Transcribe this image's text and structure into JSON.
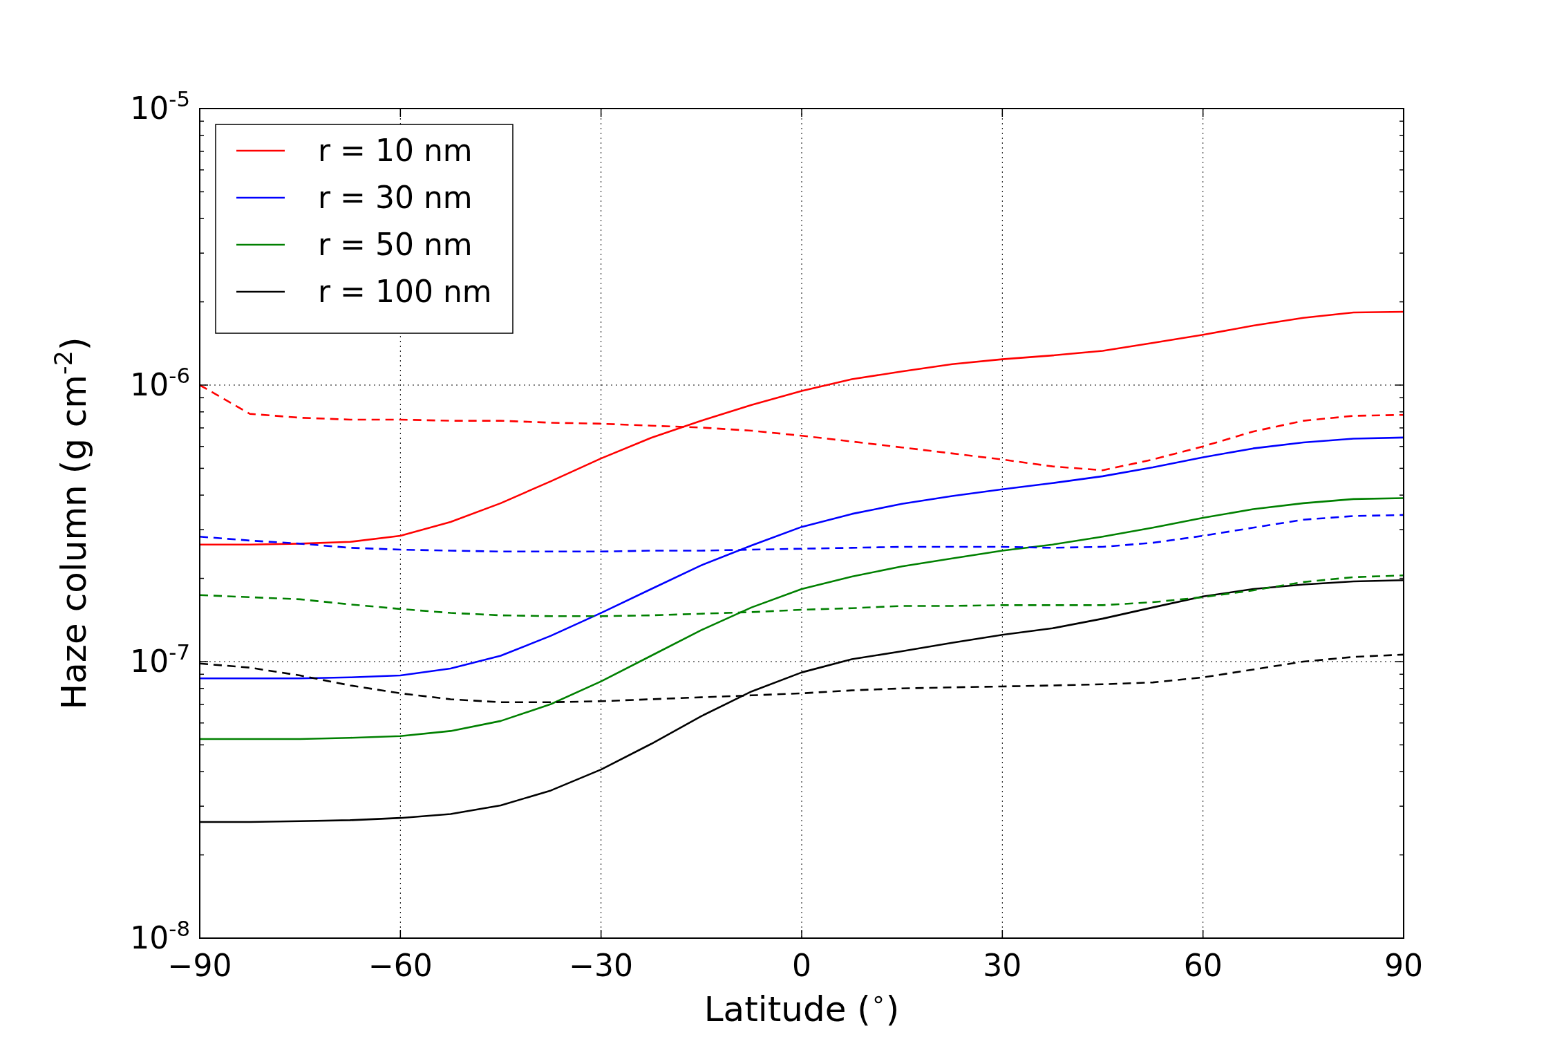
{
  "chart_data": {
    "type": "line",
    "xlabel": "Latitude ($^{∘}$)",
    "ylabel": "Haze column (g cm$^{-2}$)",
    "log": "y",
    "grid": true,
    "legend": "top left",
    "xlim": [
      -90,
      90
    ],
    "xticks": [
      {
        "value": -90,
        "label": "−90"
      },
      {
        "value": -60,
        "label": "−60"
      },
      {
        "value": -30,
        "label": "−30"
      },
      0,
      30,
      60,
      90
    ],
    "ylim": [
      1e-08,
      1e-05
    ],
    "yticks": [
      {
        "value": 1e-08,
        "label": "10$^{-8}$"
      },
      {
        "value": 2e-08,
        "label": null
      },
      {
        "value": 3e-08,
        "label": null
      },
      {
        "value": 4e-08,
        "label": null
      },
      {
        "value": 5e-08,
        "label": null
      },
      {
        "value": 6e-08,
        "label": null
      },
      {
        "value": 7e-08,
        "label": null
      },
      {
        "value": 8e-08,
        "label": null
      },
      {
        "value": 9e-08,
        "label": null
      },
      {
        "value": 1e-07,
        "label": "10$^{-7}$"
      },
      {
        "value": 2e-07,
        "label": null
      },
      {
        "value": 3e-07,
        "label": null
      },
      {
        "value": 4e-07,
        "label": null
      },
      {
        "value": 5e-07,
        "label": null
      },
      {
        "value": 6e-07,
        "label": null
      },
      {
        "value": 7e-07,
        "label": null
      },
      {
        "value": 8e-07,
        "label": null
      },
      {
        "value": 9e-07,
        "label": null
      },
      {
        "value": 1e-06,
        "label": "10$^{-6}$"
      },
      {
        "value": 2e-06,
        "label": null
      },
      {
        "value": 3e-06,
        "label": null
      },
      {
        "value": 4e-06,
        "label": null
      },
      {
        "value": 5e-06,
        "label": null
      },
      {
        "value": 6e-06,
        "label": null
      },
      {
        "value": 7e-06,
        "label": null
      },
      {
        "value": 8e-06,
        "label": null
      },
      {
        "value": 9e-06,
        "label": null
      },
      {
        "value": 1e-05,
        "label": "10$^{-5}$"
      }
    ],
    "x": [
      -90,
      -82.5,
      -75,
      -67.5,
      -60,
      -52.5,
      -45,
      -37.5,
      -30,
      -22.5,
      -15,
      -7.5,
      0,
      7.5,
      15,
      22.5,
      30,
      37.5,
      45,
      52.5,
      60,
      67.5,
      75,
      82.5,
      90
    ],
    "series": [
      {
        "name": "r = 10 nm",
        "color": "#ff0000",
        "line_style": "solid",
        "values": [
          2.65e-07,
          2.65e-07,
          2.67e-07,
          2.71e-07,
          2.85e-07,
          3.2e-07,
          3.74e-07,
          4.49e-07,
          5.43e-07,
          6.45e-07,
          7.43e-07,
          8.48e-07,
          9.52e-07,
          1.05e-06,
          1.12e-06,
          1.19e-06,
          1.24e-06,
          1.28e-06,
          1.33e-06,
          1.42e-06,
          1.52e-06,
          1.64e-06,
          1.75e-06,
          1.83e-06,
          1.84e-06
        ]
      },
      {
        "name": "r = 30 nm",
        "color": "#0000ff",
        "line_style": "solid",
        "values": [
          8.7e-08,
          8.7e-08,
          8.7e-08,
          8.77e-08,
          8.91e-08,
          9.44e-08,
          1.05e-07,
          1.24e-07,
          1.5e-07,
          1.83e-07,
          2.23e-07,
          2.63e-07,
          3.07e-07,
          3.42e-07,
          3.72e-07,
          3.97e-07,
          4.2e-07,
          4.42e-07,
          4.68e-07,
          5.04e-07,
          5.48e-07,
          5.9e-07,
          6.2e-07,
          6.4e-07,
          6.46e-07
        ]
      },
      {
        "name": "r = 50 nm",
        "color": "#008000",
        "line_style": "solid",
        "values": [
          5.25e-08,
          5.25e-08,
          5.25e-08,
          5.3e-08,
          5.38e-08,
          5.61e-08,
          6.1e-08,
          7.02e-08,
          8.48e-08,
          1.05e-07,
          1.3e-07,
          1.57e-07,
          1.83e-07,
          2.03e-07,
          2.21e-07,
          2.36e-07,
          2.52e-07,
          2.65e-07,
          2.83e-07,
          3.05e-07,
          3.31e-07,
          3.56e-07,
          3.74e-07,
          3.87e-07,
          3.9e-07
        ]
      },
      {
        "name": "r = 100 nm",
        "color": "#000000",
        "line_style": "solid",
        "values": [
          2.63e-08,
          2.63e-08,
          2.65e-08,
          2.67e-08,
          2.72e-08,
          2.81e-08,
          3.02e-08,
          3.42e-08,
          4.07e-08,
          5.04e-08,
          6.35e-08,
          7.8e-08,
          9.14e-08,
          1.02e-07,
          1.09e-07,
          1.17e-07,
          1.25e-07,
          1.32e-07,
          1.43e-07,
          1.57e-07,
          1.72e-07,
          1.83e-07,
          1.9e-07,
          1.95e-07,
          1.97e-07
        ]
      },
      {
        "color": "#ff0000",
        "line_style": "dashed",
        "values": [
          1e-06,
          7.87e-07,
          7.62e-07,
          7.5e-07,
          7.5e-07,
          7.43e-07,
          7.43e-07,
          7.31e-07,
          7.25e-07,
          7.13e-07,
          7.02e-07,
          6.84e-07,
          6.56e-07,
          6.25e-07,
          5.95e-07,
          5.66e-07,
          5.38e-07,
          5.08e-07,
          4.92e-07,
          5.38e-07,
          6e-07,
          6.79e-07,
          7.43e-07,
          7.74e-07,
          7.8e-07
        ]
      },
      {
        "color": "#0000ff",
        "line_style": "dashed",
        "values": [
          2.83e-07,
          2.74e-07,
          2.67e-07,
          2.58e-07,
          2.54e-07,
          2.52e-07,
          2.5e-07,
          2.5e-07,
          2.5e-07,
          2.52e-07,
          2.52e-07,
          2.54e-07,
          2.56e-07,
          2.58e-07,
          2.6e-07,
          2.6e-07,
          2.6e-07,
          2.58e-07,
          2.6e-07,
          2.69e-07,
          2.85e-07,
          3.05e-07,
          3.26e-07,
          3.36e-07,
          3.39e-07
        ]
      },
      {
        "color": "#008000",
        "line_style": "dashed",
        "values": [
          1.74e-07,
          1.71e-07,
          1.68e-07,
          1.61e-07,
          1.55e-07,
          1.5e-07,
          1.47e-07,
          1.46e-07,
          1.46e-07,
          1.47e-07,
          1.49e-07,
          1.51e-07,
          1.54e-07,
          1.56e-07,
          1.59e-07,
          1.59e-07,
          1.6e-07,
          1.6e-07,
          1.6e-07,
          1.64e-07,
          1.71e-07,
          1.81e-07,
          1.94e-07,
          2.02e-07,
          2.05e-07
        ]
      },
      {
        "color": "#000000",
        "line_style": "dashed",
        "values": [
          9.84e-08,
          9.51e-08,
          8.91e-08,
          8.2e-08,
          7.68e-08,
          7.31e-08,
          7.13e-08,
          7.13e-08,
          7.19e-08,
          7.31e-08,
          7.43e-08,
          7.55e-08,
          7.68e-08,
          7.87e-08,
          8e-08,
          8.07e-08,
          8.13e-08,
          8.2e-08,
          8.28e-08,
          8.41e-08,
          8.77e-08,
          9.36e-08,
          1e-07,
          1.04e-07,
          1.06e-07
        ]
      }
    ]
  }
}
